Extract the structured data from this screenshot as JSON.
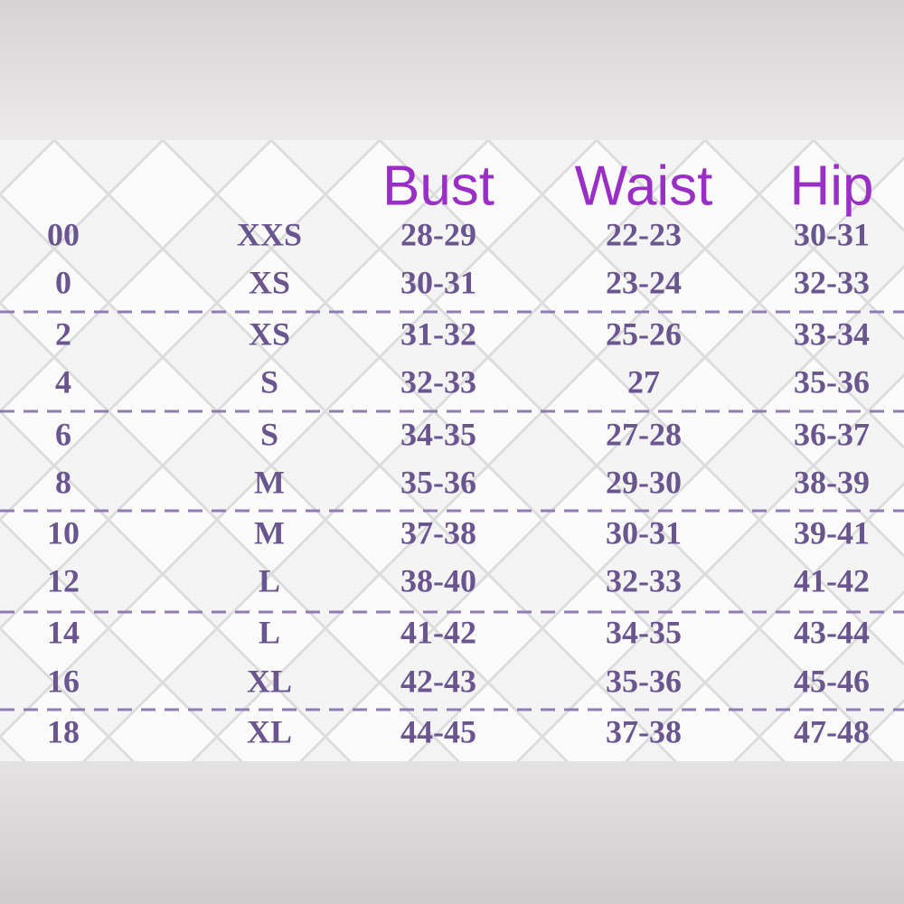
{
  "table": {
    "headers": [
      "Bust",
      "Waist",
      "Hip"
    ],
    "rows": [
      [
        "00",
        "XXS",
        "28-29",
        "22-23",
        "30-31"
      ],
      [
        "0",
        "XS",
        "30-31",
        "23-24",
        "32-33"
      ],
      [
        "2",
        "XS",
        "31-32",
        "25-26",
        "33-34"
      ],
      [
        "4",
        "S",
        "32-33",
        "27",
        "35-36"
      ],
      [
        "6",
        "S",
        "34-35",
        "27-28",
        "36-37"
      ],
      [
        "8",
        "M",
        "35-36",
        "29-30",
        "38-39"
      ],
      [
        "10",
        "M",
        "37-38",
        "30-31",
        "39-41"
      ],
      [
        "12",
        "L",
        "38-40",
        "32-33",
        "41-42"
      ],
      [
        "14",
        "L",
        "41-42",
        "34-35",
        "43-44"
      ],
      [
        "16",
        "XL",
        "42-43",
        "35-36",
        "45-46"
      ],
      [
        "18",
        "XL",
        "44-45",
        "37-38",
        "47-48"
      ]
    ]
  }
}
